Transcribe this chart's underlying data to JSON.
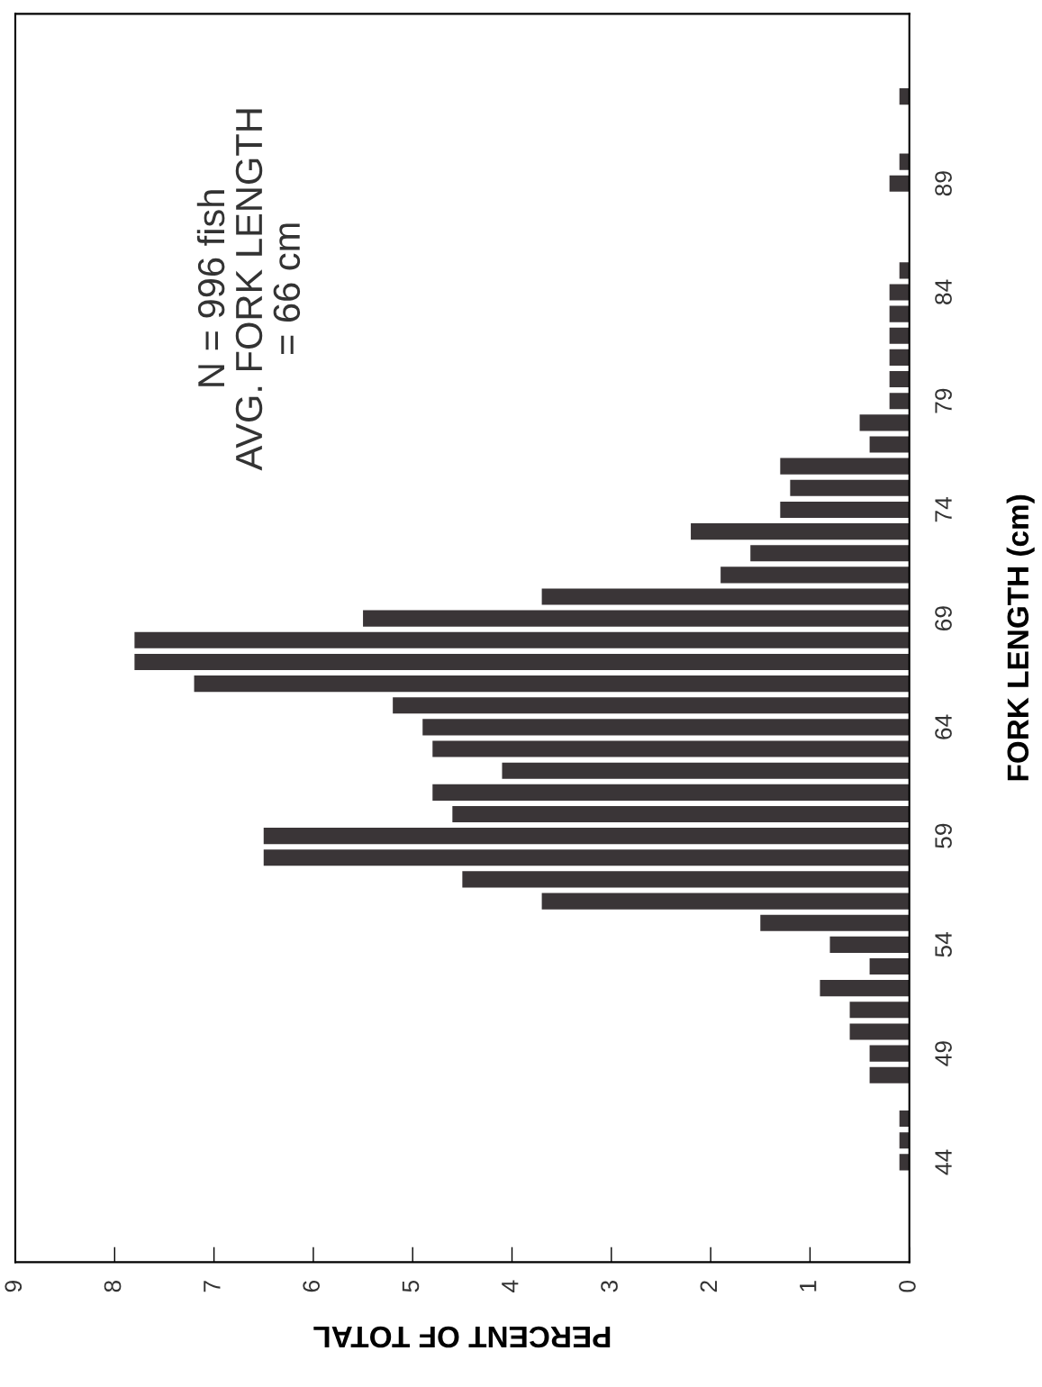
{
  "chart_data": {
    "type": "bar",
    "orientation": "horizontal",
    "xlabel": "PERCENT OF TOTAL",
    "ylabel": "FORK LENGTH (cm)",
    "annotations": [
      "N = 996 fish\nAVG. FORK LENGTH\n= 66 cm"
    ],
    "categories": [
      null,
      null,
      null,
      null,
      "89",
      null,
      null,
      null,
      null,
      "84",
      null,
      null,
      null,
      null,
      "79",
      null,
      null,
      null,
      null,
      "74",
      null,
      null,
      null,
      null,
      "69",
      null,
      null,
      null,
      null,
      "64",
      null,
      null,
      null,
      null,
      "59",
      null,
      null,
      null,
      null,
      "54",
      null,
      null,
      null,
      null,
      "49",
      null,
      null,
      null,
      null,
      "44"
    ],
    "values": [
      0.1,
      0,
      0,
      0.1,
      0.2,
      0,
      0,
      0,
      0.1,
      0.2,
      0.2,
      0.2,
      0.2,
      0.2,
      0.2,
      0.5,
      0.4,
      1.3,
      1.2,
      1.3,
      2.2,
      1.6,
      1.9,
      3.7,
      5.5,
      7.8,
      7.8,
      7.2,
      5.2,
      4.9,
      4.8,
      4.1,
      4.8,
      4.6,
      6.5,
      6.5,
      4.5,
      3.7,
      1.5,
      0.8,
      0.4,
      0.9,
      0.6,
      0.6,
      0.4,
      0.4,
      0,
      0.1,
      0.1,
      0.1
    ],
    "color": "#3a3537",
    "xlim": [
      9,
      0
    ],
    "xticks": [
      0,
      1,
      2,
      3,
      4,
      5,
      6,
      7,
      8,
      9
    ],
    "grid": false,
    "legend": false
  }
}
